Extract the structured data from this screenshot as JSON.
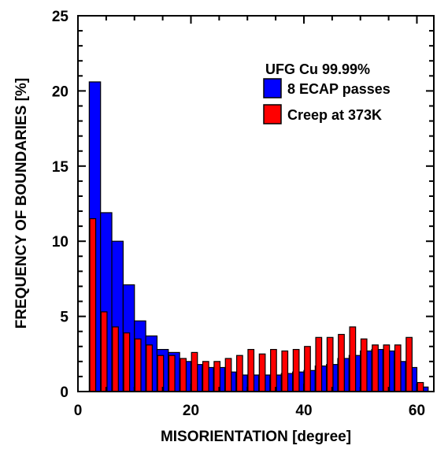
{
  "chart_data": {
    "type": "bar",
    "title": "",
    "xlabel": "MISORIENTATION [degree]",
    "ylabel": "FREQUENCY OF BOUNDARIES [%]",
    "xlim": [
      0,
      63
    ],
    "ylim": [
      0,
      25
    ],
    "xticks": [
      0,
      20,
      40,
      60
    ],
    "yticks": [
      0,
      5,
      10,
      15,
      20,
      25
    ],
    "grid": false,
    "legend_placement": "top-right",
    "legend_title": "UFG Cu 99.99%",
    "bin_width": 2,
    "x": [
      3,
      5,
      7,
      9,
      11,
      13,
      15,
      17,
      19,
      21,
      23,
      25,
      27,
      29,
      31,
      33,
      35,
      37,
      39,
      41,
      43,
      45,
      47,
      49,
      51,
      53,
      55,
      57,
      59,
      61
    ],
    "series": [
      {
        "name": "8 ECAP passes",
        "color": "#0000ff",
        "values": [
          20.6,
          11.9,
          10.0,
          7.1,
          4.7,
          3.7,
          2.8,
          2.6,
          2.0,
          1.8,
          1.6,
          1.6,
          1.3,
          1.1,
          1.1,
          1.1,
          1.1,
          1.2,
          1.3,
          1.4,
          1.7,
          1.8,
          2.2,
          2.4,
          2.7,
          2.8,
          2.7,
          2.0,
          1.6,
          0.3
        ]
      },
      {
        "name": "Creep at 373K",
        "color": "#ff0000",
        "values": [
          11.5,
          5.3,
          4.3,
          3.9,
          3.5,
          3.1,
          2.4,
          2.4,
          2.2,
          2.6,
          2.0,
          2.0,
          2.2,
          2.4,
          2.8,
          2.5,
          2.8,
          2.7,
          2.8,
          3.0,
          3.6,
          3.6,
          3.8,
          4.3,
          3.5,
          3.1,
          3.1,
          3.1,
          3.6,
          0.6
        ]
      }
    ]
  }
}
